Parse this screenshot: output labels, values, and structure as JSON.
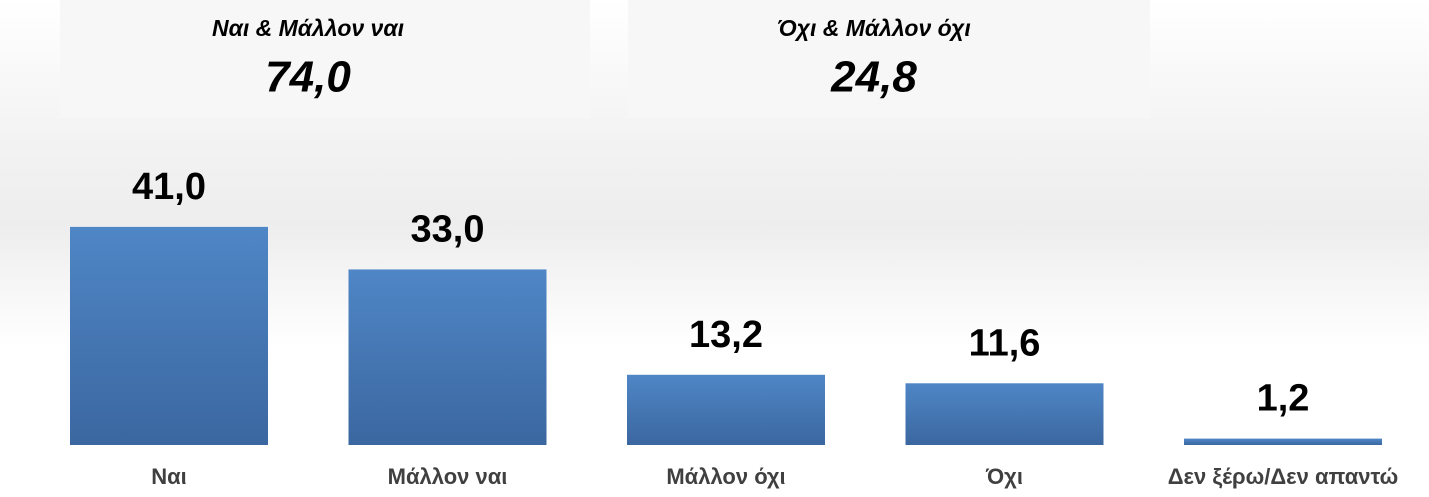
{
  "chart_data": {
    "type": "bar",
    "categories": [
      "Ναι",
      "Μάλλον ναι",
      "Μάλλον όχι",
      "Όχι",
      "Δεν ξέρω/Δεν απαντώ"
    ],
    "values": [
      41.0,
      33.0,
      13.2,
      11.6,
      1.2
    ],
    "value_labels": [
      "41,0",
      "33,0",
      "13,2",
      "11,6",
      "1,2"
    ],
    "color": "#4a7ebb",
    "annotations": [
      {
        "title": "Ναι & Μάλλον ναι",
        "total": "74,0"
      },
      {
        "title": "Όχι & Μάλλον όχι",
        "total": "24,8"
      }
    ]
  }
}
